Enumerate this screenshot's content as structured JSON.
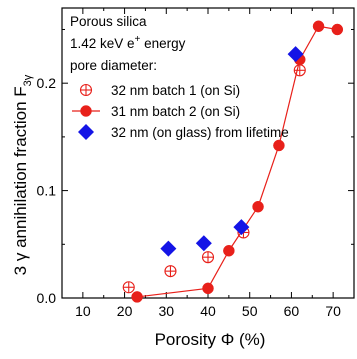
{
  "chart_data": {
    "type": "scatter",
    "title": "",
    "xlabel": "Porosity Φ (%)",
    "ylabel": "3 γ annihilation fraction F",
    "ylabel_subscript": "3γ",
    "xlim": [
      5,
      75
    ],
    "ylim": [
      0,
      0.27
    ],
    "x_ticks": [
      10,
      20,
      30,
      40,
      50,
      60,
      70
    ],
    "x_tick_labels": [
      "10",
      "20",
      "30",
      "40",
      "50",
      "60",
      "70"
    ],
    "y_ticks": [
      0.0,
      0.1,
      0.2
    ],
    "y_tick_labels": [
      "0.0",
      "0.1",
      "0.2"
    ],
    "grid": false,
    "annotations": [
      {
        "text": "Porous silica"
      },
      {
        "text": "1.42 keV e",
        "superscript": "+",
        "suffix": " energy"
      },
      {
        "text": "pore diameter:"
      }
    ],
    "legend_position": "top-left",
    "series": [
      {
        "name": "32 nm batch 1 (on Si)",
        "marker": "circle-cross-open",
        "color": "#e8201a",
        "line": false,
        "x": [
          21,
          31,
          40,
          48.5,
          62
        ],
        "y": [
          0.01,
          0.025,
          0.038,
          0.061,
          0.212
        ]
      },
      {
        "name": "31 nm batch 2 (on Si)",
        "marker": "circle-filled",
        "color": "#e8201a",
        "line": true,
        "x": [
          23,
          40,
          45,
          52,
          57,
          62,
          66.5,
          71
        ],
        "y": [
          0.001,
          0.009,
          0.044,
          0.085,
          0.142,
          0.222,
          0.253,
          0.25
        ]
      },
      {
        "name": "32 nm (on glass) from lifetime",
        "marker": "diamond-filled",
        "color": "#1414e6",
        "line": false,
        "x": [
          30.5,
          39,
          48,
          61
        ],
        "y": [
          0.046,
          0.051,
          0.066,
          0.227
        ]
      }
    ]
  }
}
